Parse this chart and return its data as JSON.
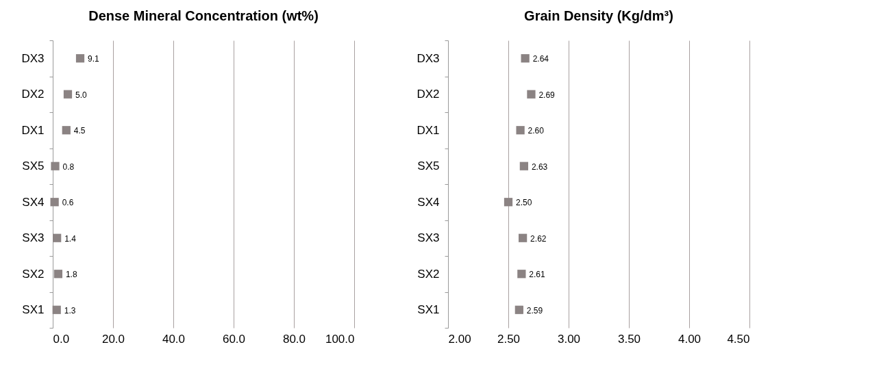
{
  "chart_data": [
    {
      "type": "scatter",
      "title": "Dense Mineral Concentration (wt%)",
      "orientation": "horizontal",
      "categories": [
        "DX3",
        "DX2",
        "DX1",
        "SX5",
        "SX4",
        "SX3",
        "SX2",
        "SX1"
      ],
      "series": [
        {
          "color": "#8b8383",
          "values": [
            9.1,
            5.0,
            4.5,
            0.8,
            0.6,
            1.4,
            1.8,
            1.3
          ],
          "value_labels": [
            "9.1",
            "5.0",
            "4.5",
            "0.8",
            "0.6",
            "1.4",
            "1.8",
            "1.3"
          ]
        }
      ],
      "xlim": [
        0,
        100
      ],
      "xticks": [
        {
          "value": 0,
          "label": "0.0"
        },
        {
          "value": 20,
          "label": "20.0"
        },
        {
          "value": 40,
          "label": "40.0"
        },
        {
          "value": 60,
          "label": "60.0"
        },
        {
          "value": 80,
          "label": "80.0"
        },
        {
          "value": 100,
          "label": "100.0"
        }
      ],
      "grid": "x",
      "marker": "square"
    },
    {
      "type": "scatter",
      "title": "Grain Density (Kg/dm³)",
      "orientation": "horizontal",
      "categories": [
        "DX3",
        "DX2",
        "DX1",
        "SX5",
        "SX4",
        "SX3",
        "SX2",
        "SX1"
      ],
      "series": [
        {
          "color": "#8b8383",
          "values": [
            2.64,
            2.69,
            2.6,
            2.63,
            2.5,
            2.62,
            2.61,
            2.59
          ],
          "value_labels": [
            "2.64",
            "2.69",
            "2.60",
            "2.63",
            "2.50",
            "2.62",
            "2.61",
            "2.59"
          ]
        }
      ],
      "xlim": [
        2,
        4.5
      ],
      "xticks": [
        {
          "value": 2,
          "label": "2.00"
        },
        {
          "value": 2.5,
          "label": "2.50"
        },
        {
          "value": 3,
          "label": "3.00"
        },
        {
          "value": 3.5,
          "label": "3.50"
        },
        {
          "value": 4,
          "label": "4.00"
        },
        {
          "value": 4.5,
          "label": "4.50"
        }
      ],
      "grid": "x",
      "marker": "square"
    }
  ]
}
